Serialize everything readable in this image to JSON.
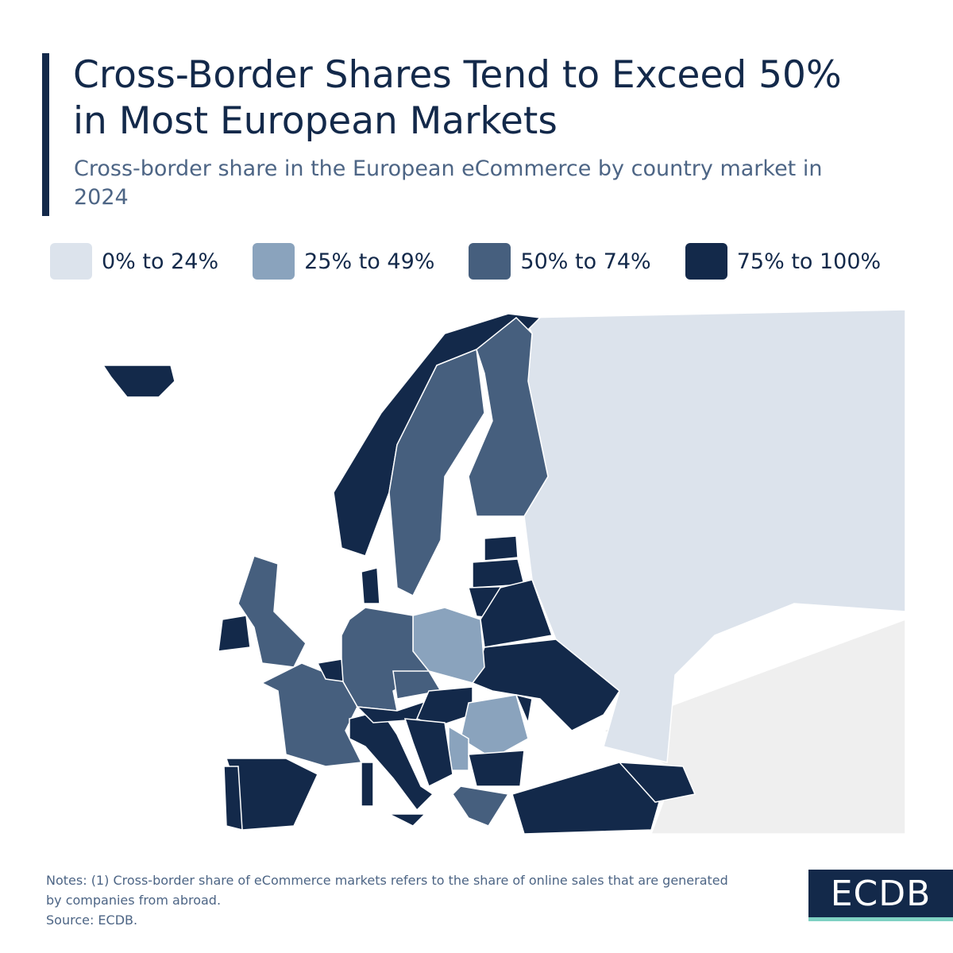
{
  "header": {
    "title": "Cross-Border Shares Tend to Exceed 50% in Most European Markets",
    "subtitle": "Cross-border share in the European eCommerce by country market in 2024"
  },
  "legend": [
    {
      "label": "0% to 24%",
      "color": "#dce3ec"
    },
    {
      "label": "25% to 49%",
      "color": "#8aa3bd"
    },
    {
      "label": "50% to 74%",
      "color": "#465f7e"
    },
    {
      "label": "75% to 100%",
      "color": "#13294a"
    }
  ],
  "footer": {
    "notes": "Notes: (1) Cross-border share of eCommerce markets refers to the share of online sales that are generated by companies from abroad.",
    "source": "Source: ECDB.",
    "logo": "ECDB"
  }
}
